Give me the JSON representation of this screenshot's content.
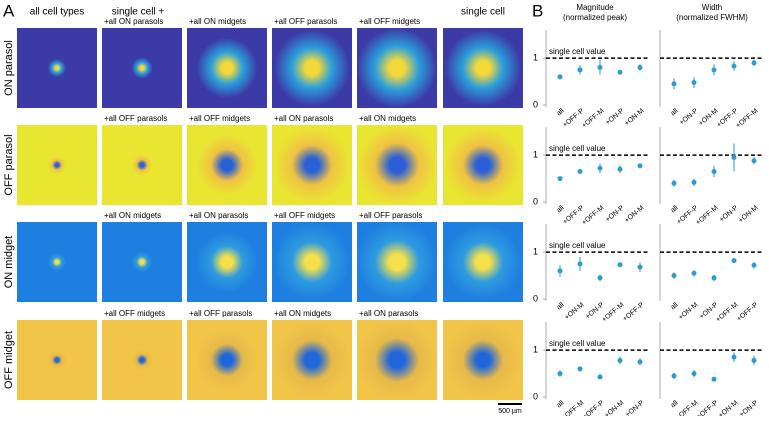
{
  "panel_a": {
    "label": "A",
    "column_titles": [
      "all cell types",
      "single cell +",
      "single cell"
    ],
    "rows": [
      {
        "name": "ON parasol",
        "image_labels": [
          "+all ON parasols",
          "+all ON midgets",
          "+all OFF parasols",
          "+all OFF midgets"
        ]
      },
      {
        "name": "OFF parasol",
        "image_labels": [
          "+all OFF parasols",
          "+all OFF midgets",
          "+all ON parasols",
          "+all ON midgets"
        ]
      },
      {
        "name": "ON midget",
        "image_labels": [
          "+all ON midgets",
          "+all ON parasols",
          "+all OFF midgets",
          "+all OFF parasols"
        ]
      },
      {
        "name": "OFF midget",
        "image_labels": [
          "+all OFF midgets",
          "+all OFF parasols",
          "+all ON midgets",
          "+all ON parasols"
        ]
      }
    ],
    "scale_bar": "500 µm"
  },
  "panel_b": {
    "label": "B",
    "column_titles": [
      [
        "Magnitude",
        "(normalized peak)"
      ],
      [
        "Width",
        "(normalized FWHM)"
      ]
    ]
  },
  "chart_data": [
    {
      "type": "errorbar",
      "categories": [
        "all",
        "+OFF-P",
        "+OFF-M",
        "+ON-P",
        "+ON-M"
      ],
      "values": [
        0.6,
        0.75,
        0.8,
        0.7,
        0.8
      ],
      "errors": [
        0.05,
        0.1,
        0.15,
        0.03,
        0.07
      ],
      "color": "#2e9ad0",
      "ylim": [
        0,
        1.6
      ],
      "yticks": [
        0,
        1
      ],
      "reference": 1,
      "reference_label": "single cell value"
    },
    {
      "type": "errorbar",
      "categories": [
        "all",
        "+ON-P",
        "+ON-M",
        "+OFF-P",
        "+OFF-M"
      ],
      "values": [
        0.45,
        0.48,
        0.75,
        0.83,
        0.9
      ],
      "errors": [
        0.12,
        0.12,
        0.12,
        0.1,
        0.07
      ],
      "color": "#2e9ad0",
      "ylim": [
        0,
        1.6
      ],
      "reference": 1
    },
    {
      "type": "errorbar",
      "categories": [
        "all",
        "+OFF-P",
        "+OFF-M",
        "+ON-P",
        "+ON-M"
      ],
      "values": [
        0.5,
        0.65,
        0.72,
        0.7,
        0.77
      ],
      "errors": [
        0.03,
        0.05,
        0.1,
        0.08,
        0.05
      ],
      "color": "#2e9ad0",
      "ylim": [
        0,
        1.6
      ],
      "yticks": [
        0,
        1
      ],
      "reference": 1,
      "reference_label": "single cell value"
    },
    {
      "type": "errorbar",
      "categories": [
        "all",
        "+OFF-P",
        "+OFF-M",
        "+ON-P",
        "+ON-M"
      ],
      "values": [
        0.4,
        0.42,
        0.65,
        0.95,
        0.88
      ],
      "errors": [
        0.08,
        0.08,
        0.12,
        0.3,
        0.08
      ],
      "color": "#2e9ad0",
      "ylim": [
        0,
        1.6
      ],
      "reference": 1
    },
    {
      "type": "errorbar",
      "categories": [
        "all",
        "+ON-M",
        "+ON-P",
        "+OFF-M",
        "+OFF-P"
      ],
      "values": [
        0.6,
        0.75,
        0.45,
        0.73,
        0.68
      ],
      "errors": [
        0.12,
        0.15,
        0.07,
        0.05,
        0.1
      ],
      "color": "#2e9ad0",
      "ylim": [
        0,
        1.6
      ],
      "yticks": [
        0,
        1
      ],
      "reference": 1,
      "reference_label": "single cell value"
    },
    {
      "type": "errorbar",
      "categories": [
        "all",
        "+ON-M",
        "+ON-P",
        "+OFF-M",
        "+OFF-P"
      ],
      "values": [
        0.5,
        0.55,
        0.45,
        0.82,
        0.72
      ],
      "errors": [
        0.07,
        0.07,
        0.07,
        0.05,
        0.07
      ],
      "color": "#2e9ad0",
      "ylim": [
        0,
        1.6
      ],
      "reference": 1
    },
    {
      "type": "errorbar",
      "categories": [
        "all",
        "+OFF-M",
        "+OFF-P",
        "+ON-M",
        "+ON-P"
      ],
      "values": [
        0.5,
        0.6,
        0.43,
        0.78,
        0.75
      ],
      "errors": [
        0.07,
        0.05,
        0.05,
        0.08,
        0.08
      ],
      "color": "#2e9ad0",
      "ylim": [
        0,
        1.6
      ],
      "yticks": [
        0,
        1
      ],
      "reference": 1,
      "reference_label": "single cell value"
    },
    {
      "type": "errorbar",
      "categories": [
        "all",
        "+OFF-M",
        "+OFF-P",
        "+ON-M",
        "+ON-P"
      ],
      "values": [
        0.45,
        0.5,
        0.38,
        0.85,
        0.78
      ],
      "errors": [
        0.07,
        0.08,
        0.05,
        0.1,
        0.1
      ],
      "color": "#2e9ad0",
      "ylim": [
        0,
        1.6
      ],
      "reference": 1
    }
  ]
}
